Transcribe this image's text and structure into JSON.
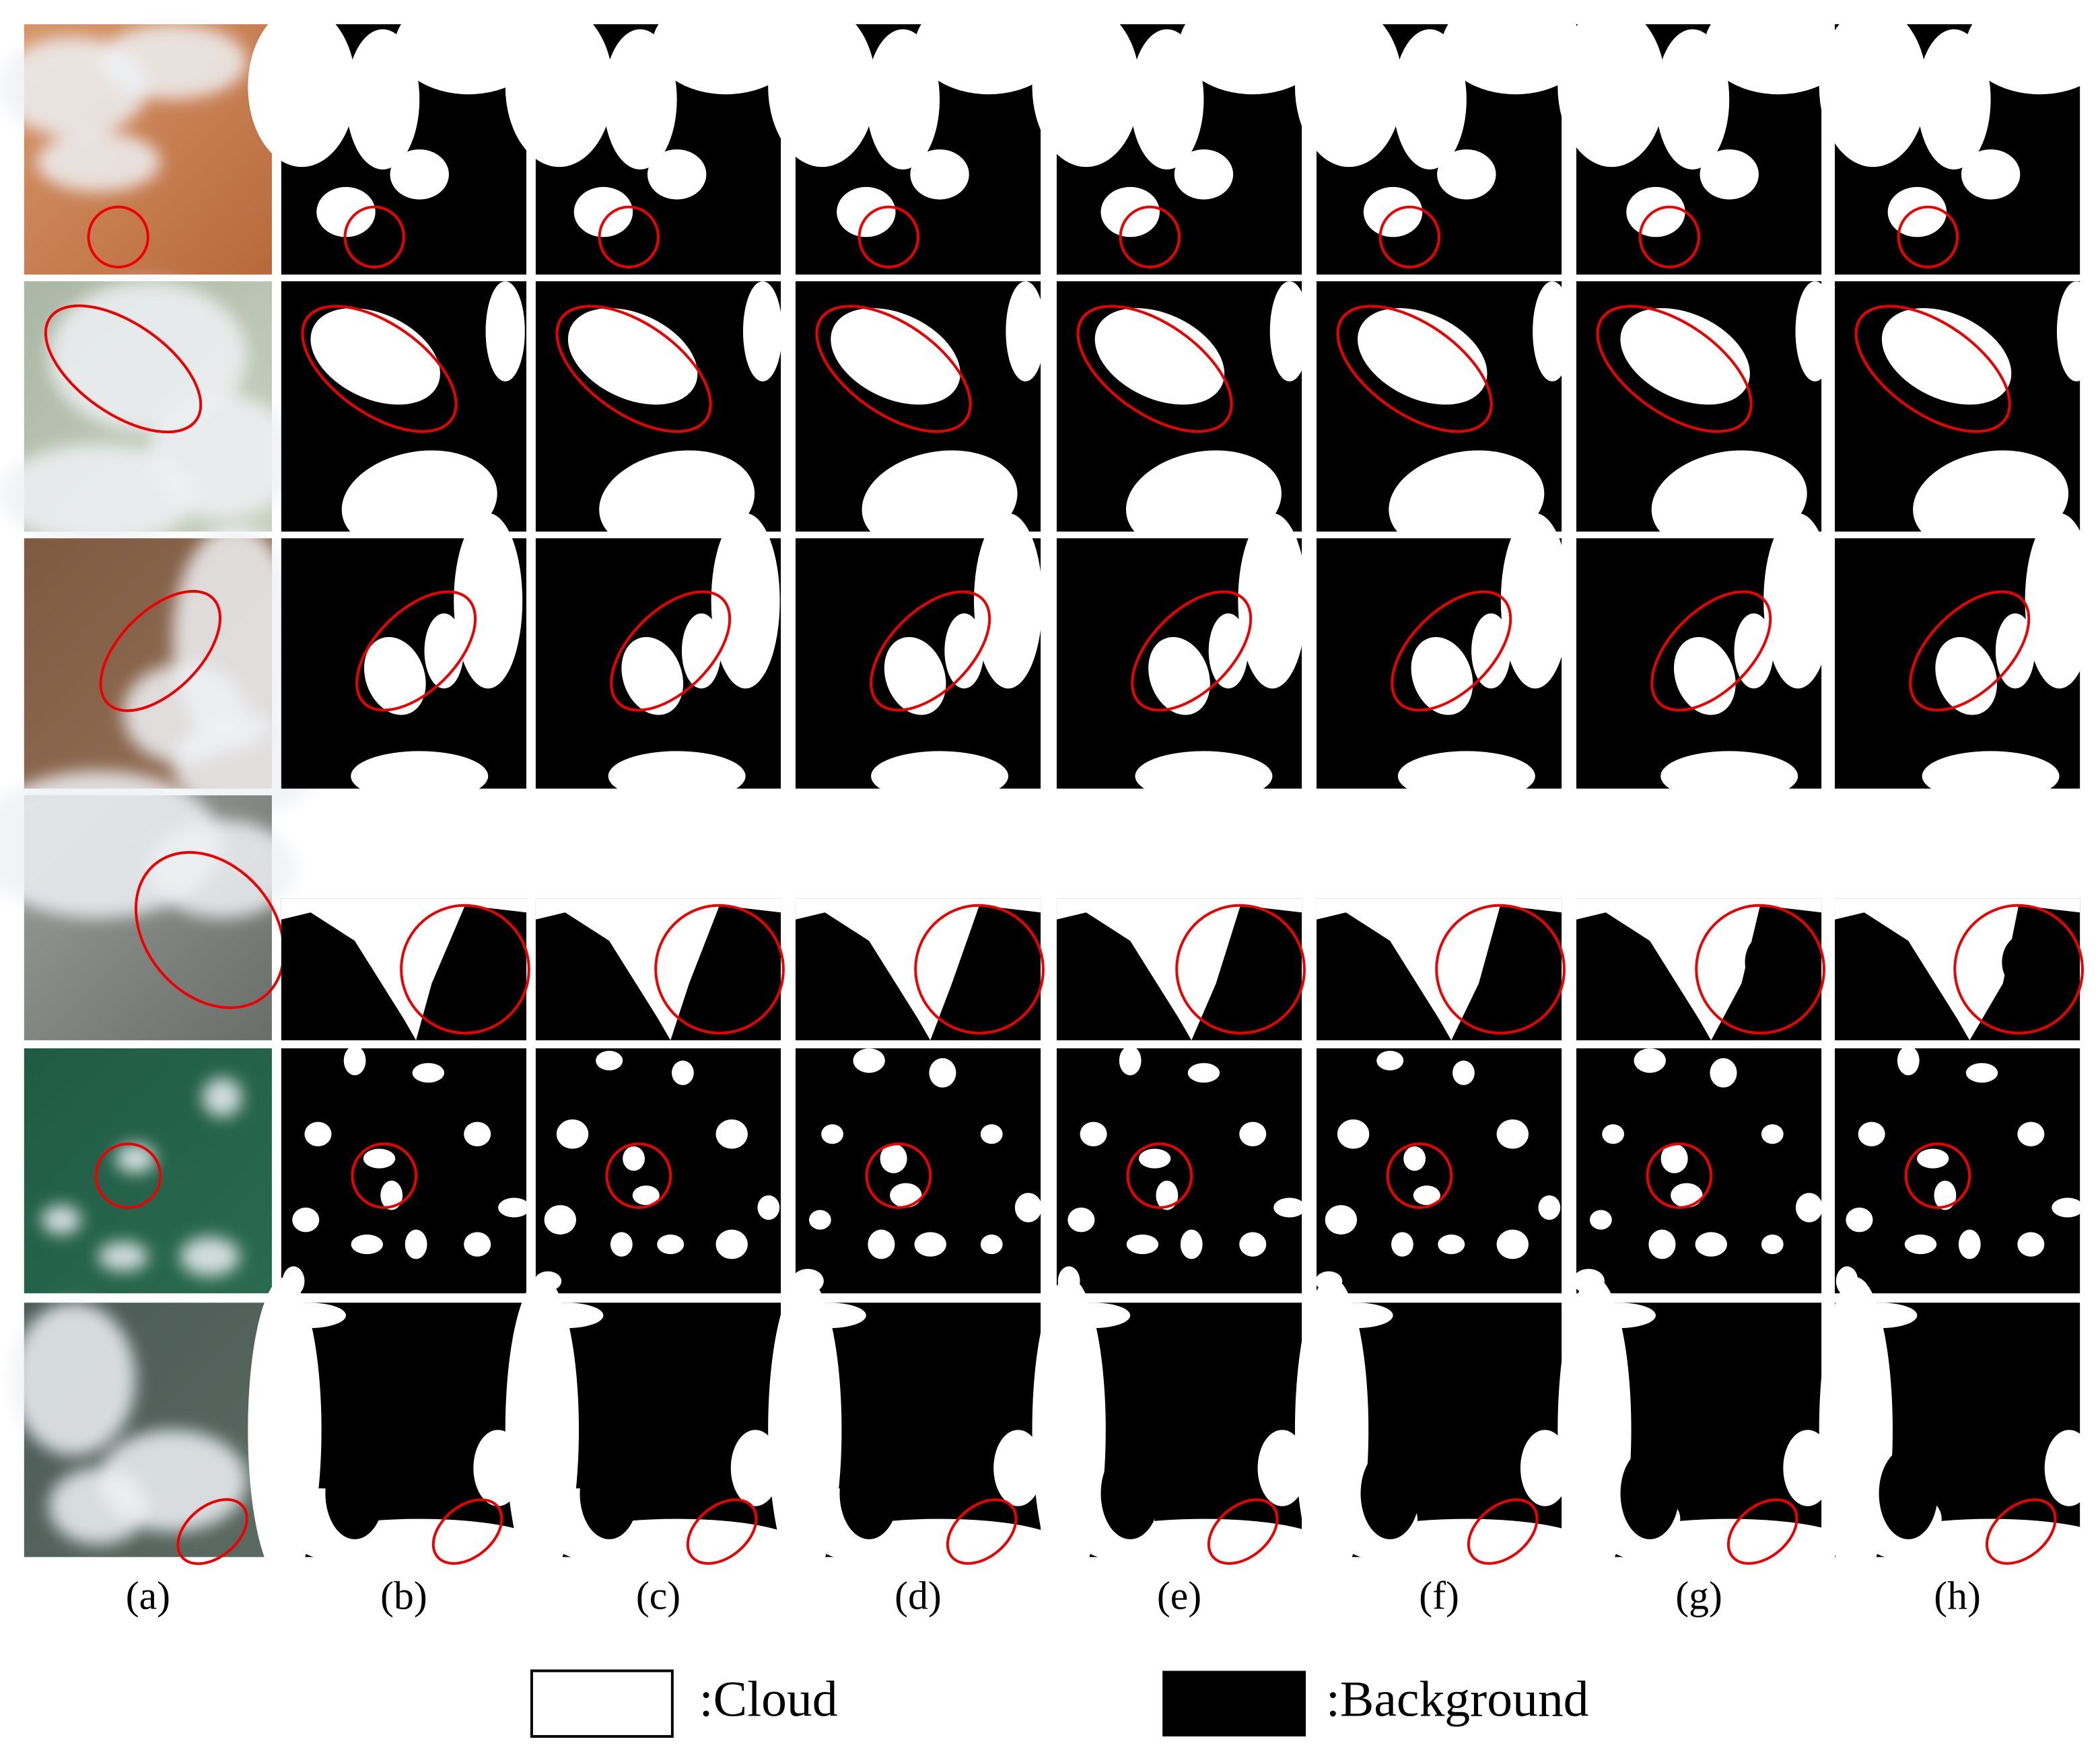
{
  "columns": [
    "(a)",
    "(b)",
    "(c)",
    "(d)",
    "(e)",
    "(f)",
    "(g)",
    "(h)"
  ],
  "legend": [
    {
      "label": ":Cloud"
    },
    {
      "label": ":Background"
    }
  ]
}
